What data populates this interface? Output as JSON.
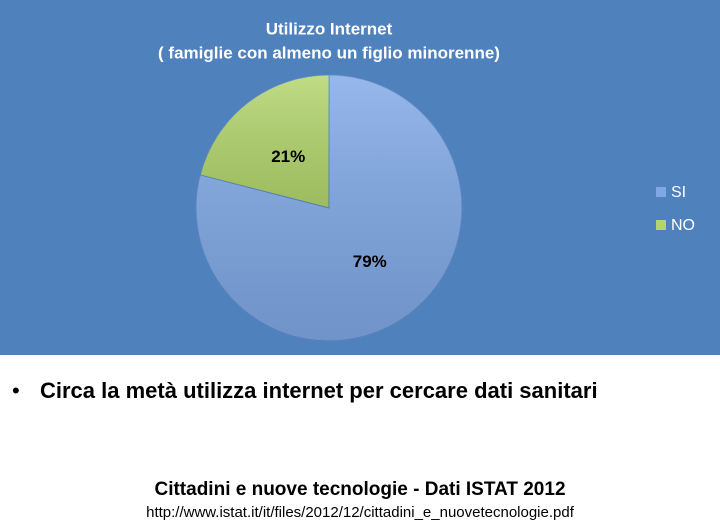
{
  "chart_data": {
    "type": "pie",
    "title": "Utilizzo Internet",
    "subtitle": "( famiglie con almeno un figlio minorenne)",
    "categories": [
      "SI",
      "NO"
    ],
    "values": [
      79,
      21
    ],
    "value_labels": [
      "79%",
      "21%"
    ],
    "colors": [
      "#7fa8e6",
      "#b3d66c"
    ],
    "legend": "right"
  },
  "bullet": "Circa la metà utilizza internet per cercare dati sanitari",
  "source": {
    "title": "Cittadini e nuove tecnologie - Dati ISTAT 2012",
    "url": "http://www.istat.it/it/files/2012/12/cittadini_e_nuovetecnologie.pdf"
  }
}
